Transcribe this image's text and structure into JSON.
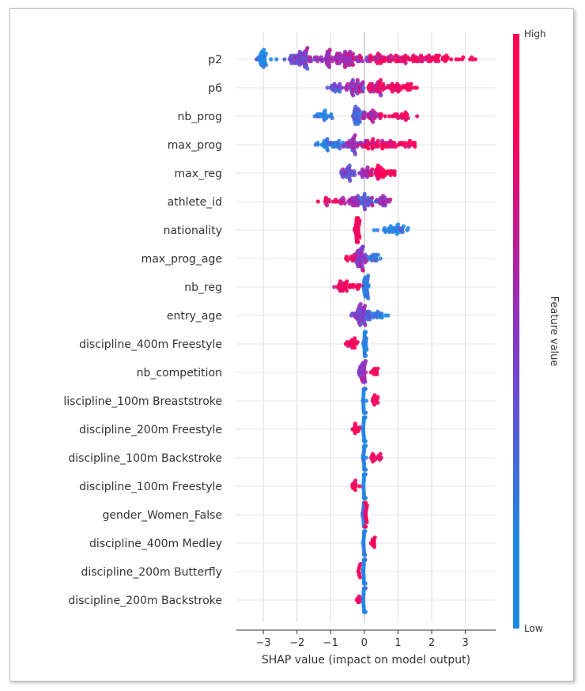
{
  "chart_data": {
    "type": "scatter",
    "subtype": "shap-beeswarm",
    "xlabel": "SHAP value (impact on model output)",
    "xlim": [
      -3.8,
      3.9
    ],
    "xticks": [
      -3,
      -2,
      -1,
      0,
      1,
      2,
      3
    ],
    "colorbar": {
      "label": "Feature value",
      "high_label": "High",
      "low_label": "Low",
      "low_color": "#1e88e5",
      "high_color": "#ff0052"
    },
    "features": [
      {
        "name": "p2",
        "range": [
          -3.2,
          3.6
        ],
        "low_side": "left",
        "clusters": [
          [
            -3.0,
            0.1,
            30,
            0.0
          ],
          [
            -1.9,
            0.25,
            60,
            0.4
          ],
          [
            -0.7,
            0.45,
            90,
            0.6
          ],
          [
            0.8,
            0.5,
            60,
            0.9
          ],
          [
            2.2,
            0.6,
            50,
            1.0
          ]
        ]
      },
      {
        "name": "p6",
        "range": [
          -1.1,
          1.8
        ],
        "low_side": "left",
        "clusters": [
          [
            -0.9,
            0.15,
            15,
            0.3
          ],
          [
            -0.3,
            0.25,
            40,
            0.5
          ],
          [
            0.4,
            0.3,
            40,
            0.85
          ],
          [
            1.1,
            0.35,
            30,
            1.0
          ]
        ]
      },
      {
        "name": "nb_prog",
        "range": [
          -1.5,
          1.6
        ],
        "low_side": "left",
        "clusters": [
          [
            -1.2,
            0.12,
            20,
            0.05
          ],
          [
            -0.2,
            0.08,
            30,
            0.2
          ],
          [
            0.2,
            0.15,
            25,
            0.6
          ],
          [
            0.9,
            0.3,
            25,
            0.95
          ]
        ]
      },
      {
        "name": "max_prog",
        "range": [
          -1.6,
          1.5
        ],
        "low_side": "left",
        "clusters": [
          [
            -1.0,
            0.3,
            35,
            0.1
          ],
          [
            -0.3,
            0.15,
            30,
            0.5
          ],
          [
            0.4,
            0.35,
            45,
            0.9
          ],
          [
            1.2,
            0.2,
            20,
            1.0
          ]
        ]
      },
      {
        "name": "max_reg",
        "range": [
          -0.8,
          0.9
        ],
        "low_side": "left",
        "clusters": [
          [
            -0.5,
            0.15,
            30,
            0.4
          ],
          [
            0.0,
            0.1,
            15,
            0.6
          ],
          [
            0.4,
            0.15,
            30,
            0.95
          ],
          [
            0.75,
            0.1,
            10,
            1.0
          ]
        ]
      },
      {
        "name": "athlete_id",
        "range": [
          -1.4,
          0.8
        ],
        "low_side": "right",
        "clusters": [
          [
            -1.0,
            0.2,
            15,
            0.9
          ],
          [
            -0.4,
            0.15,
            25,
            0.6
          ],
          [
            0.1,
            0.15,
            30,
            0.3
          ],
          [
            0.5,
            0.15,
            20,
            0.6
          ]
        ]
      },
      {
        "name": "nationality",
        "range": [
          -0.35,
          1.3
        ],
        "low_side": "right",
        "clusters": [
          [
            -0.2,
            0.04,
            45,
            1.0
          ],
          [
            0.85,
            0.25,
            30,
            0.0
          ]
        ]
      },
      {
        "name": "max_prog_age",
        "range": [
          -0.6,
          0.5
        ],
        "low_side": "right",
        "clusters": [
          [
            -0.4,
            0.12,
            12,
            0.95
          ],
          [
            -0.1,
            0.1,
            40,
            0.5
          ],
          [
            0.3,
            0.1,
            15,
            0.15
          ]
        ]
      },
      {
        "name": "nb_reg",
        "range": [
          -1.0,
          0.2
        ],
        "low_side": "right",
        "clusters": [
          [
            -0.55,
            0.25,
            35,
            0.95
          ],
          [
            0.05,
            0.05,
            25,
            0.05
          ]
        ]
      },
      {
        "name": "entry_age",
        "range": [
          -0.4,
          0.8
        ],
        "low_side": "right",
        "clusters": [
          [
            -0.15,
            0.08,
            35,
            0.5
          ],
          [
            0.1,
            0.1,
            20,
            0.3
          ],
          [
            0.5,
            0.15,
            15,
            0.05
          ]
        ]
      },
      {
        "name": "discipline_400m Freestyle",
        "range": [
          -0.6,
          0.1
        ],
        "low_side": "right",
        "clusters": [
          [
            -0.4,
            0.1,
            18,
            1.0
          ],
          [
            0.02,
            0.02,
            35,
            0.0
          ]
        ]
      },
      {
        "name": "nb_competition",
        "range": [
          -0.2,
          0.4
        ],
        "low_side": "left",
        "clusters": [
          [
            -0.05,
            0.06,
            30,
            0.5
          ],
          [
            0.3,
            0.06,
            10,
            1.0
          ]
        ]
      },
      {
        "name": "liscipline_100m Breaststroke",
        "range": [
          -0.05,
          0.4
        ],
        "low_side": "left",
        "clusters": [
          [
            0.0,
            0.02,
            35,
            0.0
          ],
          [
            0.3,
            0.05,
            12,
            1.0
          ]
        ]
      },
      {
        "name": "discipline_200m Freestyle",
        "range": [
          -0.4,
          0.05
        ],
        "low_side": "right",
        "clusters": [
          [
            -0.25,
            0.07,
            12,
            1.0
          ],
          [
            0.0,
            0.02,
            35,
            0.0
          ]
        ]
      },
      {
        "name": "discipline_100m Backstroke",
        "range": [
          -0.05,
          0.5
        ],
        "low_side": "left",
        "clusters": [
          [
            0.0,
            0.02,
            35,
            0.0
          ],
          [
            0.25,
            0.05,
            8,
            1.0
          ],
          [
            0.42,
            0.05,
            6,
            1.0
          ]
        ]
      },
      {
        "name": "discipline_100m Freestyle",
        "range": [
          -0.45,
          0.05
        ],
        "low_side": "right",
        "clusters": [
          [
            -0.3,
            0.07,
            12,
            1.0
          ],
          [
            0.0,
            0.02,
            35,
            0.0
          ]
        ]
      },
      {
        "name": "gender_Women_False",
        "range": [
          -0.05,
          0.1
        ],
        "low_side": "left",
        "clusters": [
          [
            -0.02,
            0.02,
            25,
            0.1
          ],
          [
            0.05,
            0.02,
            15,
            1.0
          ]
        ]
      },
      {
        "name": "discipline_400m Medley",
        "range": [
          -0.05,
          0.4
        ],
        "low_side": "left",
        "clusters": [
          [
            0.0,
            0.02,
            35,
            0.0
          ],
          [
            0.28,
            0.05,
            10,
            1.0
          ]
        ]
      },
      {
        "name": "discipline_200m Butterfly",
        "range": [
          -0.25,
          0.05
        ],
        "low_side": "right",
        "clusters": [
          [
            -0.15,
            0.04,
            8,
            1.0
          ],
          [
            0.0,
            0.02,
            35,
            0.0
          ]
        ]
      },
      {
        "name": "discipline_200m Backstroke",
        "range": [
          -0.25,
          0.05
        ],
        "low_side": "right",
        "clusters": [
          [
            -0.15,
            0.04,
            8,
            1.0
          ],
          [
            0.0,
            0.02,
            35,
            0.0
          ]
        ]
      }
    ]
  }
}
